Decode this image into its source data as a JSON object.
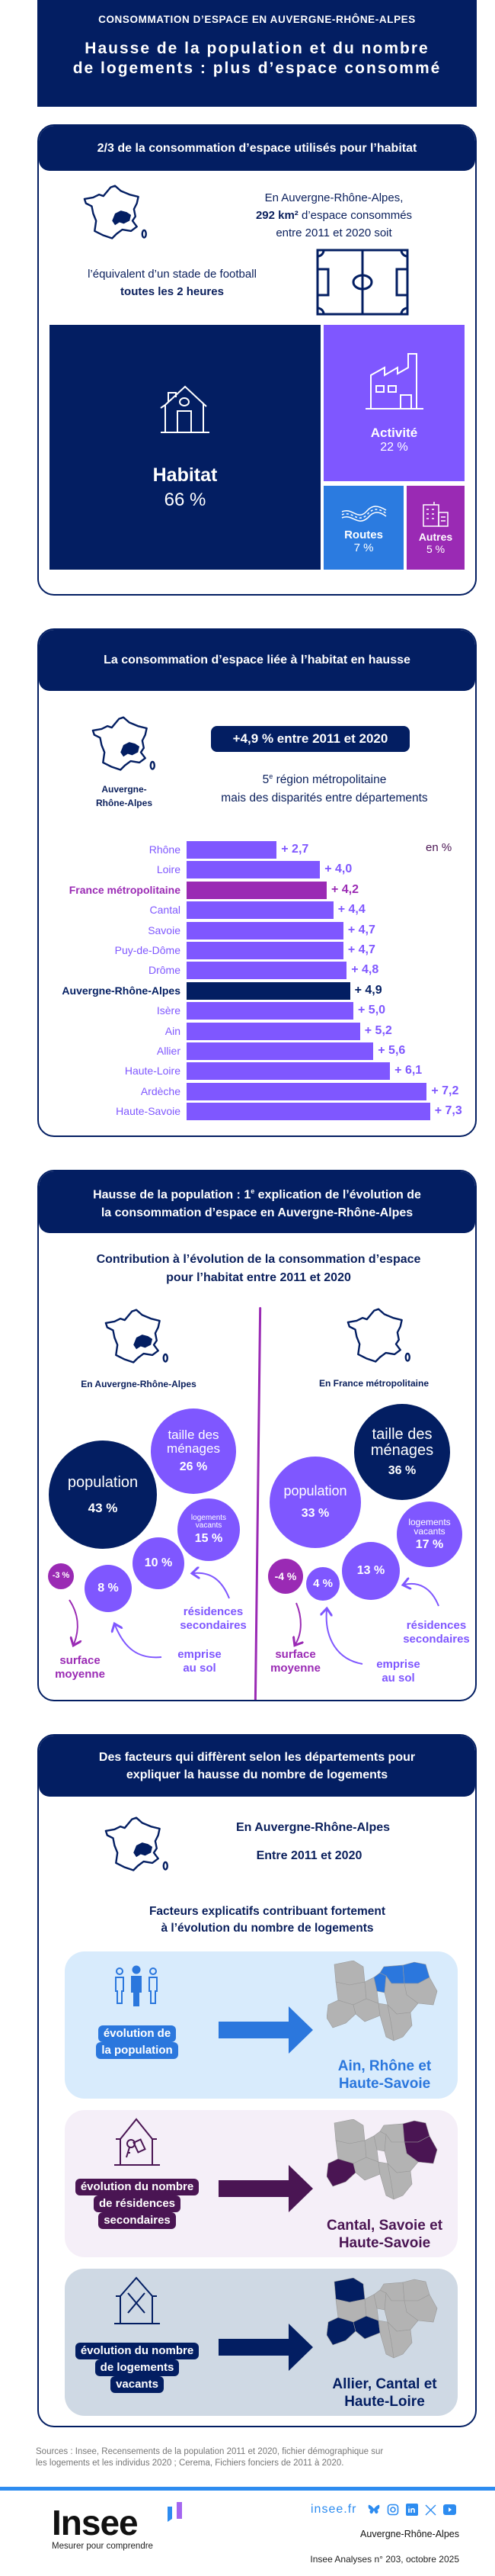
{
  "header": {
    "kicker": "CONSOMMATION D’ESPACE EN AUVERGNE-RHÔNE-ALPES",
    "title_line1": "Hausse de la population et du nombre",
    "title_line2": "de logements : plus d’espace consommé"
  },
  "section1": {
    "title": "2/3 de la consommation d’espace utilisés pour l’habitat",
    "intro_line1": "En Auvergne-Rhône-Alpes,",
    "intro_bold": "292 km²",
    "intro_rest": " d’espace consommés",
    "intro_line3": "entre 2011 et 2020 soit",
    "equiv_line1": "l’équivalent d’un stade de football",
    "equiv_bold": "toutes les 2 heures",
    "treemap": [
      {
        "label": "Habitat",
        "value": "66 %",
        "share": 66,
        "color": "#031e62",
        "icon": "house-icon"
      },
      {
        "label": "Activité",
        "value": "22 %",
        "share": 22,
        "color": "#7f57ff",
        "icon": "factory-icon"
      },
      {
        "label": "Routes",
        "value": "7 %",
        "share": 7,
        "color": "#2b7be0",
        "icon": "road-icon"
      },
      {
        "label": "Autres",
        "value": "5 %",
        "share": 5,
        "color": "#9a2ab4",
        "icon": "buildings-icon"
      }
    ]
  },
  "section2": {
    "title": "La consommation d’espace liée à l’habitat en hausse",
    "map_label_line1": "Auvergne-",
    "map_label_line2": "Rhône-Alpes",
    "badge": "+4,9 % entre 2011 et 2020",
    "rank_num": "5",
    "rank_sup": "e",
    "rank_rest": " région métropolitaine",
    "rank_line2": "mais des disparités entre départements",
    "unit": "en %"
  },
  "chart_data": {
    "type": "bar",
    "orientation": "horizontal",
    "unit": "en %",
    "categories": [
      "Rhône",
      "Loire",
      "France métropolitaine",
      "Cantal",
      "Savoie",
      "Puy-de-Dôme",
      "Drôme",
      "Auvergne-Rhône-Alpes",
      "Isère",
      "Ain",
      "Allier",
      "Haute-Loire",
      "Ardèche",
      "Haute-Savoie"
    ],
    "values": [
      2.7,
      4.0,
      4.2,
      4.4,
      4.7,
      4.7,
      4.8,
      4.9,
      5.0,
      5.2,
      5.6,
      6.1,
      7.2,
      7.3
    ],
    "highlight": {
      "France métropolitaine": "#9a2ab4",
      "Auvergne-Rhône-Alpes": "#031e62"
    },
    "default_color": "#7f57ff",
    "xlim": [
      0,
      7.3
    ]
  },
  "section3": {
    "title_line1a": "Hausse de la population : 1",
    "title_sup": "e",
    "title_line1b": " explication de l’évolution de",
    "title_line2": "la consommation d’espace en Auvergne-Rhône-Alpes",
    "subtitle_line1": "Contribution à l’évolution de la consommation d’espace",
    "subtitle_line2": "pour l’habitat entre 2011 et 2020",
    "left": {
      "label": "En Auvergne-Rhône-Alpes",
      "population": {
        "name": "population",
        "value": "43 %"
      },
      "menages": {
        "name1": "taille des",
        "name2": "ménages",
        "value": "26 %"
      },
      "vacants": {
        "name1": "logements",
        "name2": "vacants",
        "value": "15 %"
      },
      "secondaires": {
        "value": "10 %",
        "label1": "résidences",
        "label2": "secondaires"
      },
      "emprise": {
        "value": "8 %",
        "label1": "emprise",
        "label2": "au sol"
      },
      "surface": {
        "value": "-3 %",
        "label1": "surface",
        "label2": "moyenne"
      }
    },
    "right": {
      "label": "En France métropolitaine",
      "population": {
        "name": "population",
        "value": "33 %"
      },
      "menages": {
        "name1": "taille des",
        "name2": "ménages",
        "value": "36 %"
      },
      "vacants": {
        "name1": "logements",
        "name2": "vacants",
        "value": "17 %"
      },
      "secondaires": {
        "value": "13 %",
        "label1": "résidences",
        "label2": "secondaires"
      },
      "emprise": {
        "value": "4 %",
        "label1": "emprise",
        "label2": "au sol"
      },
      "surface": {
        "value": "-4 %",
        "label1": "surface",
        "label2": "moyenne"
      }
    },
    "colors": {
      "navy": "#031e62",
      "purple": "#7f57ff",
      "magenta": "#9a2ab4"
    }
  },
  "section4": {
    "title_line1": "Des facteurs qui diffèrent selon les départements pour",
    "title_line2": "expliquer la hausse du nombre de logements",
    "region": "En Auvergne-Rhône-Alpes",
    "period": "Entre 2011 et 2020",
    "subtitle_line1": "Facteurs explicatifs contribuant fortement",
    "subtitle_line2": "à l’évolution du nombre de logements",
    "factors": [
      {
        "lines": [
          "évolution de",
          "la population"
        ],
        "result_line1": "Ain, Rhône et",
        "result_line2": "Haute-Savoie",
        "highlighted": [
          "Ain",
          "Rhône",
          "Haute-Savoie"
        ],
        "color": "#2b77dd",
        "bg": "#d8ebfc",
        "icon": "people-icon"
      },
      {
        "lines": [
          "évolution du nombre",
          "de résidences",
          "secondaires"
        ],
        "result_line1": "Cantal, Savoie et",
        "result_line2": "Haute-Savoie",
        "highlighted": [
          "Cantal",
          "Savoie",
          "Haute-Savoie"
        ],
        "color": "#4a1553",
        "bg": "#f5eff8",
        "icon": "house-keys-icon"
      },
      {
        "lines": [
          "évolution du nombre",
          "de logements",
          "vacants"
        ],
        "result_line1": "Allier, Cantal et",
        "result_line2": "Haute-Loire",
        "highlighted": [
          "Allier",
          "Cantal",
          "Haute-Loire"
        ],
        "color": "#031e62",
        "bg": "#cfd9e4",
        "icon": "vacant-house-icon"
      }
    ]
  },
  "footer": {
    "sources_line1": "Sources : Insee, Recensements de la population 2011 et 2020, fichier démographique sur",
    "sources_line2": "les logements et les individus 2020 ; Cerema, Fichiers fonciers de 2011 à 2020.",
    "logo": "Insee",
    "tagline": "Mesurer pour comprendre",
    "site": "insee.fr",
    "social": [
      "bluesky-icon",
      "instagram-icon",
      "linkedin-icon",
      "x-icon",
      "youtube-icon"
    ],
    "region": "Auvergne-Rhône-Alpes",
    "publication": "Insee Analyses n° 203, octobre 2025"
  }
}
